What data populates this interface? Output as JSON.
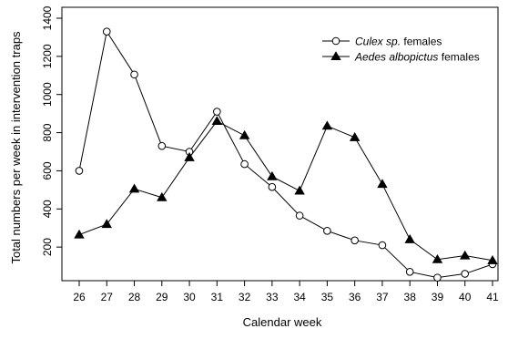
{
  "chart_data": {
    "type": "line",
    "title": "",
    "xlabel": "Calendar week",
    "ylabel": "Total numbers per week in intervention traps",
    "x": [
      26,
      27,
      28,
      29,
      30,
      31,
      32,
      33,
      34,
      35,
      36,
      37,
      38,
      39,
      40,
      41
    ],
    "xlim": [
      25.5,
      41.5
    ],
    "ylim": [
      100,
      1400
    ],
    "yticks": [
      200,
      400,
      600,
      800,
      1000,
      1200,
      1400
    ],
    "grid": false,
    "legend_position": "top-right",
    "series": [
      {
        "name_italic": "Culex sp.",
        "name_rest": "females",
        "marker": "open-circle",
        "values": [
          600,
          1330,
          1105,
          730,
          700,
          910,
          635,
          515,
          365,
          285,
          235,
          210,
          70,
          40,
          60,
          110
        ]
      },
      {
        "name_italic": "Aedes albopictus",
        "name_rest": "females",
        "marker": "filled-triangle",
        "values": [
          265,
          320,
          505,
          460,
          670,
          860,
          785,
          570,
          495,
          835,
          775,
          530,
          240,
          135,
          155,
          130
        ]
      }
    ]
  }
}
